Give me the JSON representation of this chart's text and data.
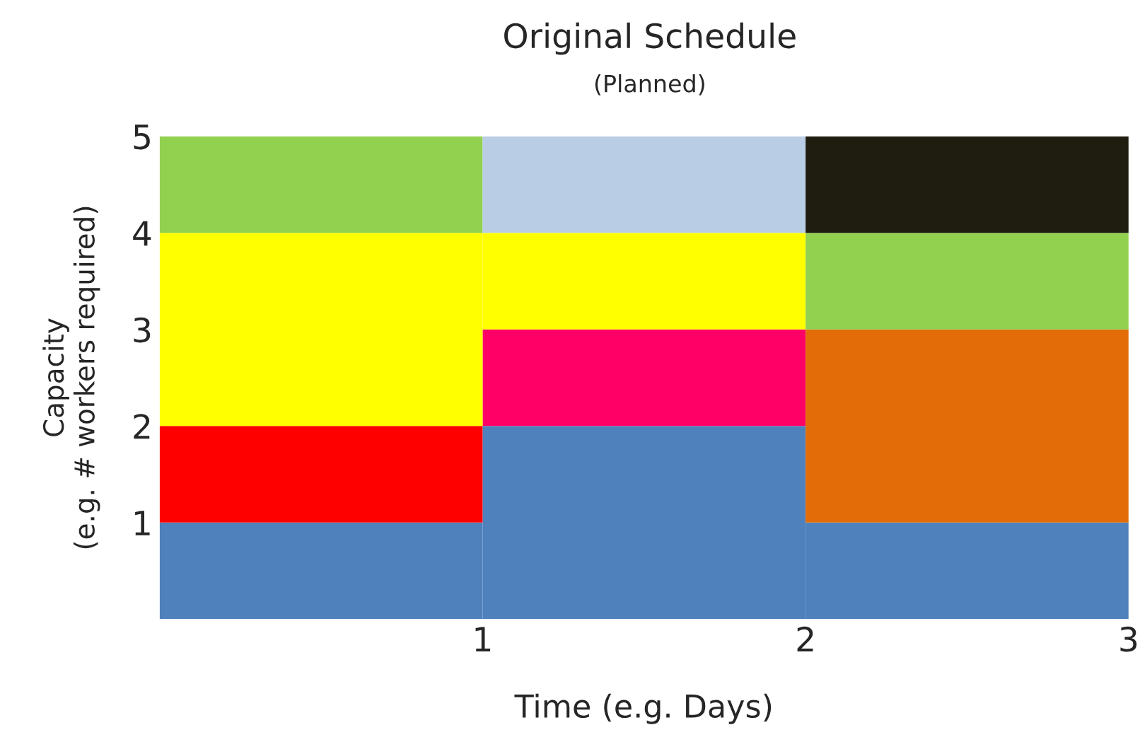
{
  "chart_data": {
    "type": "bar",
    "title": "Original Schedule",
    "subtitle": "(Planned)",
    "xlabel": "Time (e.g. Days)",
    "ylabel": "Capacity\n(e.g. # workers required)",
    "x": [
      0.5,
      1.5,
      2.5
    ],
    "stacked": true,
    "series": [
      {
        "colors": [
          "#4f81bd",
          "#4f81bd",
          "#4f81bd"
        ],
        "values": [
          1,
          2,
          1
        ]
      },
      {
        "colors": [
          "#ff0000",
          "#ff0066",
          "#e36c09"
        ],
        "values": [
          1,
          1,
          2
        ]
      },
      {
        "colors": [
          "#ffff00",
          "#ffff00",
          "#92d050"
        ],
        "values": [
          2,
          1,
          1
        ]
      },
      {
        "colors": [
          "#92d050",
          "#b9cde5",
          "#1f1d10"
        ],
        "values": [
          1,
          1,
          1
        ]
      }
    ],
    "xlim": [
      0,
      3
    ],
    "xticks": [
      1,
      2,
      3
    ],
    "ylim": [
      0,
      5
    ],
    "yticks": [
      1,
      2,
      3,
      4,
      5
    ],
    "grid": false,
    "legend": false
  }
}
